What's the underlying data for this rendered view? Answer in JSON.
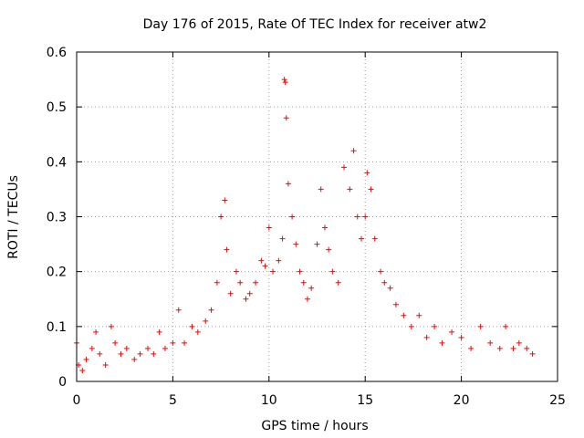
{
  "chart_data": {
    "type": "scatter",
    "title": "Day 176 of 2015, Rate Of TEC Index for receiver atw2",
    "xlabel": "GPS time / hours",
    "ylabel": "ROTI / TECUs",
    "xlim": [
      0,
      25
    ],
    "ylim": [
      0,
      0.6
    ],
    "xticks": [
      "0",
      "5",
      "10",
      "15",
      "20",
      "25"
    ],
    "xtick_values": [
      0,
      5,
      10,
      15,
      20,
      25
    ],
    "yticks": [
      "0",
      "0.1",
      "0.2",
      "0.3",
      "0.4",
      "0.5",
      "0.6"
    ],
    "ytick_values": [
      0,
      0.1,
      0.2,
      0.3,
      0.4,
      0.5,
      0.6
    ],
    "grid": true,
    "marker": "+",
    "series_color": "#ff0000",
    "series": [
      {
        "name": "ROTI",
        "points": [
          [
            0.0,
            0.07
          ],
          [
            0.1,
            0.03
          ],
          [
            0.3,
            0.02
          ],
          [
            0.5,
            0.04
          ],
          [
            0.8,
            0.06
          ],
          [
            1.0,
            0.09
          ],
          [
            1.2,
            0.05
          ],
          [
            1.5,
            0.03
          ],
          [
            1.8,
            0.1
          ],
          [
            2.0,
            0.07
          ],
          [
            2.3,
            0.05
          ],
          [
            2.6,
            0.06
          ],
          [
            3.0,
            0.04
          ],
          [
            3.3,
            0.05
          ],
          [
            3.7,
            0.06
          ],
          [
            4.0,
            0.05
          ],
          [
            4.3,
            0.09
          ],
          [
            4.6,
            0.06
          ],
          [
            5.0,
            0.07
          ],
          [
            5.3,
            0.13
          ],
          [
            5.6,
            0.07
          ],
          [
            6.0,
            0.1
          ],
          [
            6.3,
            0.09
          ],
          [
            6.7,
            0.11
          ],
          [
            7.0,
            0.13
          ],
          [
            7.3,
            0.18
          ],
          [
            7.5,
            0.3
          ],
          [
            7.7,
            0.33
          ],
          [
            7.8,
            0.24
          ],
          [
            8.0,
            0.16
          ],
          [
            8.3,
            0.2
          ],
          [
            8.5,
            0.18
          ],
          [
            8.8,
            0.15
          ],
          [
            9.0,
            0.16
          ],
          [
            9.3,
            0.18
          ],
          [
            9.6,
            0.22
          ],
          [
            9.8,
            0.21
          ],
          [
            10.0,
            0.28
          ],
          [
            10.2,
            0.2
          ],
          [
            10.5,
            0.22
          ],
          [
            10.7,
            0.26
          ],
          [
            10.8,
            0.55
          ],
          [
            10.85,
            0.545
          ],
          [
            10.9,
            0.48
          ],
          [
            11.0,
            0.36
          ],
          [
            11.2,
            0.3
          ],
          [
            11.4,
            0.25
          ],
          [
            11.6,
            0.2
          ],
          [
            11.8,
            0.18
          ],
          [
            12.0,
            0.15
          ],
          [
            12.2,
            0.17
          ],
          [
            12.5,
            0.25
          ],
          [
            12.7,
            0.35
          ],
          [
            12.9,
            0.28
          ],
          [
            13.1,
            0.24
          ],
          [
            13.3,
            0.2
          ],
          [
            13.6,
            0.18
          ],
          [
            13.9,
            0.39
          ],
          [
            14.2,
            0.35
          ],
          [
            14.4,
            0.42
          ],
          [
            14.6,
            0.3
          ],
          [
            14.8,
            0.26
          ],
          [
            15.0,
            0.3
          ],
          [
            15.1,
            0.38
          ],
          [
            15.3,
            0.35
          ],
          [
            15.5,
            0.26
          ],
          [
            15.8,
            0.2
          ],
          [
            16.0,
            0.18
          ],
          [
            16.3,
            0.17
          ],
          [
            16.6,
            0.14
          ],
          [
            17.0,
            0.12
          ],
          [
            17.4,
            0.1
          ],
          [
            17.8,
            0.12
          ],
          [
            18.2,
            0.08
          ],
          [
            18.6,
            0.1
          ],
          [
            19.0,
            0.07
          ],
          [
            19.5,
            0.09
          ],
          [
            20.0,
            0.08
          ],
          [
            20.5,
            0.06
          ],
          [
            21.0,
            0.1
          ],
          [
            21.5,
            0.07
          ],
          [
            22.0,
            0.06
          ],
          [
            22.3,
            0.1
          ],
          [
            22.7,
            0.06
          ],
          [
            23.0,
            0.07
          ],
          [
            23.4,
            0.06
          ],
          [
            23.7,
            0.05
          ]
        ]
      }
    ]
  }
}
